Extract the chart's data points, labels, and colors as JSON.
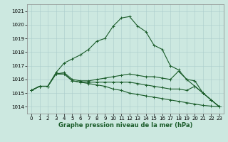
{
  "title": "Graphe pression niveau de la mer (hPa)",
  "bg_color": "#cce8e0",
  "grid_color": "#aacccc",
  "line_color": "#1a5c2a",
  "marker_color": "#1a5c2a",
  "xlim": [
    -0.5,
    23.5
  ],
  "ylim": [
    1013.5,
    1021.5
  ],
  "yticks": [
    1014,
    1015,
    1016,
    1017,
    1018,
    1019,
    1020,
    1021
  ],
  "xticks": [
    0,
    1,
    2,
    3,
    4,
    5,
    6,
    7,
    8,
    9,
    10,
    11,
    12,
    13,
    14,
    15,
    16,
    17,
    18,
    19,
    20,
    21,
    22,
    23
  ],
  "series": [
    [
      1015.2,
      1015.5,
      1015.5,
      1016.5,
      1017.2,
      1017.5,
      1017.8,
      1018.2,
      1018.8,
      1019.0,
      1019.9,
      1020.5,
      1020.6,
      1019.9,
      1019.5,
      1018.5,
      1018.2,
      1017.0,
      1016.7,
      1016.0,
      1015.5,
      1015.0,
      1014.5,
      1014.0
    ],
    [
      1015.2,
      1015.5,
      1015.5,
      1016.4,
      1016.5,
      1016.0,
      1015.9,
      1015.9,
      1016.0,
      1016.1,
      1016.2,
      1016.3,
      1016.4,
      1016.3,
      1016.2,
      1016.2,
      1016.1,
      1016.0,
      1016.6,
      1016.0,
      1015.9,
      1015.0,
      1014.5,
      1014.0
    ],
    [
      1015.2,
      1015.5,
      1015.5,
      1016.4,
      1016.4,
      1015.9,
      1015.8,
      1015.8,
      1015.8,
      1015.8,
      1015.8,
      1015.8,
      1015.8,
      1015.7,
      1015.6,
      1015.5,
      1015.4,
      1015.3,
      1015.3,
      1015.2,
      1015.5,
      1015.0,
      1014.5,
      1014.0
    ],
    [
      1015.2,
      1015.5,
      1015.5,
      1016.4,
      1016.4,
      1015.9,
      1015.8,
      1015.7,
      1015.6,
      1015.5,
      1015.3,
      1015.2,
      1015.0,
      1014.9,
      1014.8,
      1014.7,
      1014.6,
      1014.5,
      1014.4,
      1014.3,
      1014.2,
      1014.1,
      1014.05,
      1014.0
    ]
  ],
  "marker_size": 2.5,
  "line_width": 0.8,
  "title_fontsize": 6,
  "tick_fontsize": 5
}
